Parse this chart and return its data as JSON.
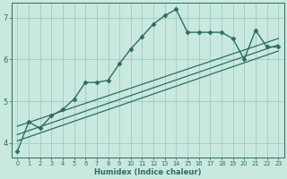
{
  "xlabel": "Humidex (Indice chaleur)",
  "xlim": [
    -0.5,
    23.5
  ],
  "ylim": [
    3.65,
    7.35
  ],
  "yticks": [
    4,
    5,
    6,
    7
  ],
  "xticks": [
    0,
    1,
    2,
    3,
    4,
    5,
    6,
    7,
    8,
    9,
    10,
    11,
    12,
    13,
    14,
    15,
    16,
    17,
    18,
    19,
    20,
    21,
    22,
    23
  ],
  "bg_color": "#c8e8e0",
  "grid_color": "#9eccc4",
  "line_color": "#2d6e62",
  "series": [
    {
      "comment": "main wiggly line with diamond markers",
      "x": [
        0,
        1,
        2,
        3,
        4,
        5,
        6,
        7,
        8,
        9,
        10,
        11,
        12,
        13,
        14,
        15,
        16,
        17,
        18,
        19,
        20,
        21,
        22,
        23
      ],
      "y": [
        3.8,
        4.5,
        4.35,
        4.65,
        4.8,
        5.05,
        5.45,
        5.45,
        5.5,
        5.9,
        6.25,
        6.55,
        6.85,
        7.05,
        7.2,
        6.65,
        6.65,
        6.65,
        6.65,
        6.5,
        6.0,
        6.7,
        6.3,
        6.3
      ],
      "marker": "D",
      "markersize": 2.5,
      "linewidth": 1.0
    },
    {
      "comment": "straight line 1 - lower",
      "x": [
        0,
        23
      ],
      "y": [
        4.05,
        6.2
      ],
      "marker": null,
      "markersize": 0,
      "linewidth": 0.9
    },
    {
      "comment": "straight line 2 - middle",
      "x": [
        0,
        23
      ],
      "y": [
        4.2,
        6.35
      ],
      "marker": null,
      "markersize": 0,
      "linewidth": 0.9
    },
    {
      "comment": "straight line 3 - upper",
      "x": [
        0,
        23
      ],
      "y": [
        4.4,
        6.5
      ],
      "marker": null,
      "markersize": 0,
      "linewidth": 0.9
    }
  ]
}
